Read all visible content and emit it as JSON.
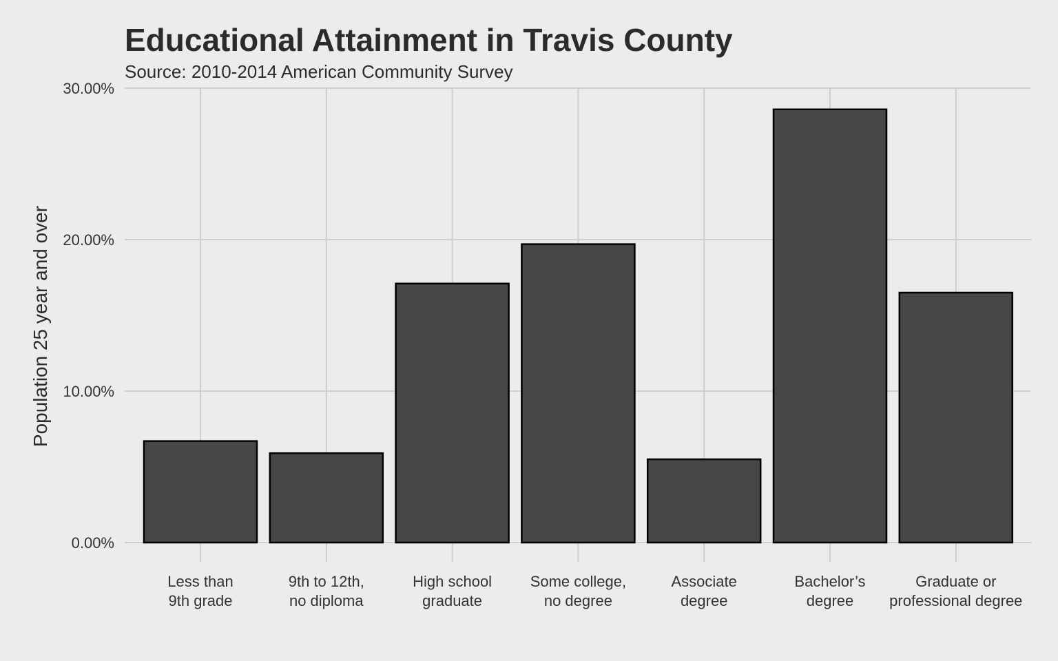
{
  "chart_data": {
    "type": "bar",
    "title": "Educational Attainment in Travis County",
    "subtitle": "Source: 2010-2014 American Community Survey",
    "xlabel": "",
    "ylabel": "Population 25 year and over",
    "categories": [
      [
        "Less than",
        "9th grade"
      ],
      [
        "9th to 12th,",
        "no diploma"
      ],
      [
        "High school",
        "graduate"
      ],
      [
        "Some college,",
        "no degree"
      ],
      [
        "Associate",
        "degree"
      ],
      [
        "Bachelor’s",
        "degree"
      ],
      [
        "Graduate or",
        "professional degree"
      ]
    ],
    "values": [
      6.7,
      5.9,
      17.1,
      19.7,
      5.5,
      28.6,
      16.5
    ],
    "ylim": [
      0,
      30
    ],
    "yticks": [
      0,
      10,
      20,
      30
    ],
    "ytick_labels": [
      "0.00%",
      "10.00%",
      "20.00%",
      "30.00%"
    ],
    "grid": true,
    "legend": "none",
    "colors": {
      "background": "#ececec",
      "bar_fill": "#474747",
      "bar_stroke": "#000000",
      "grid": "#cfcfcf",
      "text": "#2b2b2b"
    }
  }
}
